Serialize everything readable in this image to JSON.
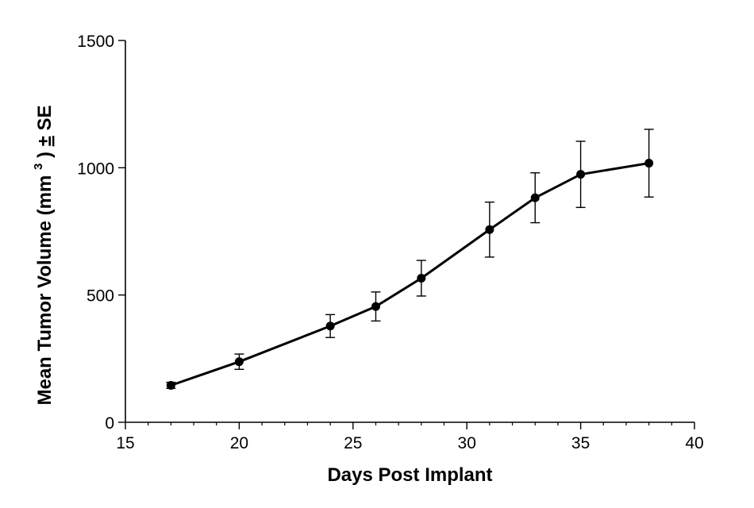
{
  "chart_data": {
    "type": "line",
    "title": "",
    "xlabel": "Days Post Implant",
    "ylabel": {
      "prefix": "Mean Tumor Volume (mm",
      "superscript": "3",
      "suffix": ") ",
      "pm": "±",
      "se": " SE"
    },
    "xlim": [
      15,
      40
    ],
    "ylim": [
      0,
      1500
    ],
    "x_ticks": [
      15,
      20,
      25,
      30,
      35,
      40
    ],
    "y_ticks": [
      0,
      500,
      1000,
      1500
    ],
    "x_minor_step": 1,
    "grid": false,
    "series": [
      {
        "x": [
          17,
          20,
          24,
          26,
          28,
          31,
          33,
          35,
          38
        ],
        "y": [
          145,
          238,
          378,
          455,
          566,
          757,
          882,
          974,
          1018
        ],
        "error": [
          12,
          30,
          45,
          57,
          70,
          108,
          98,
          130,
          133
        ]
      }
    ]
  }
}
